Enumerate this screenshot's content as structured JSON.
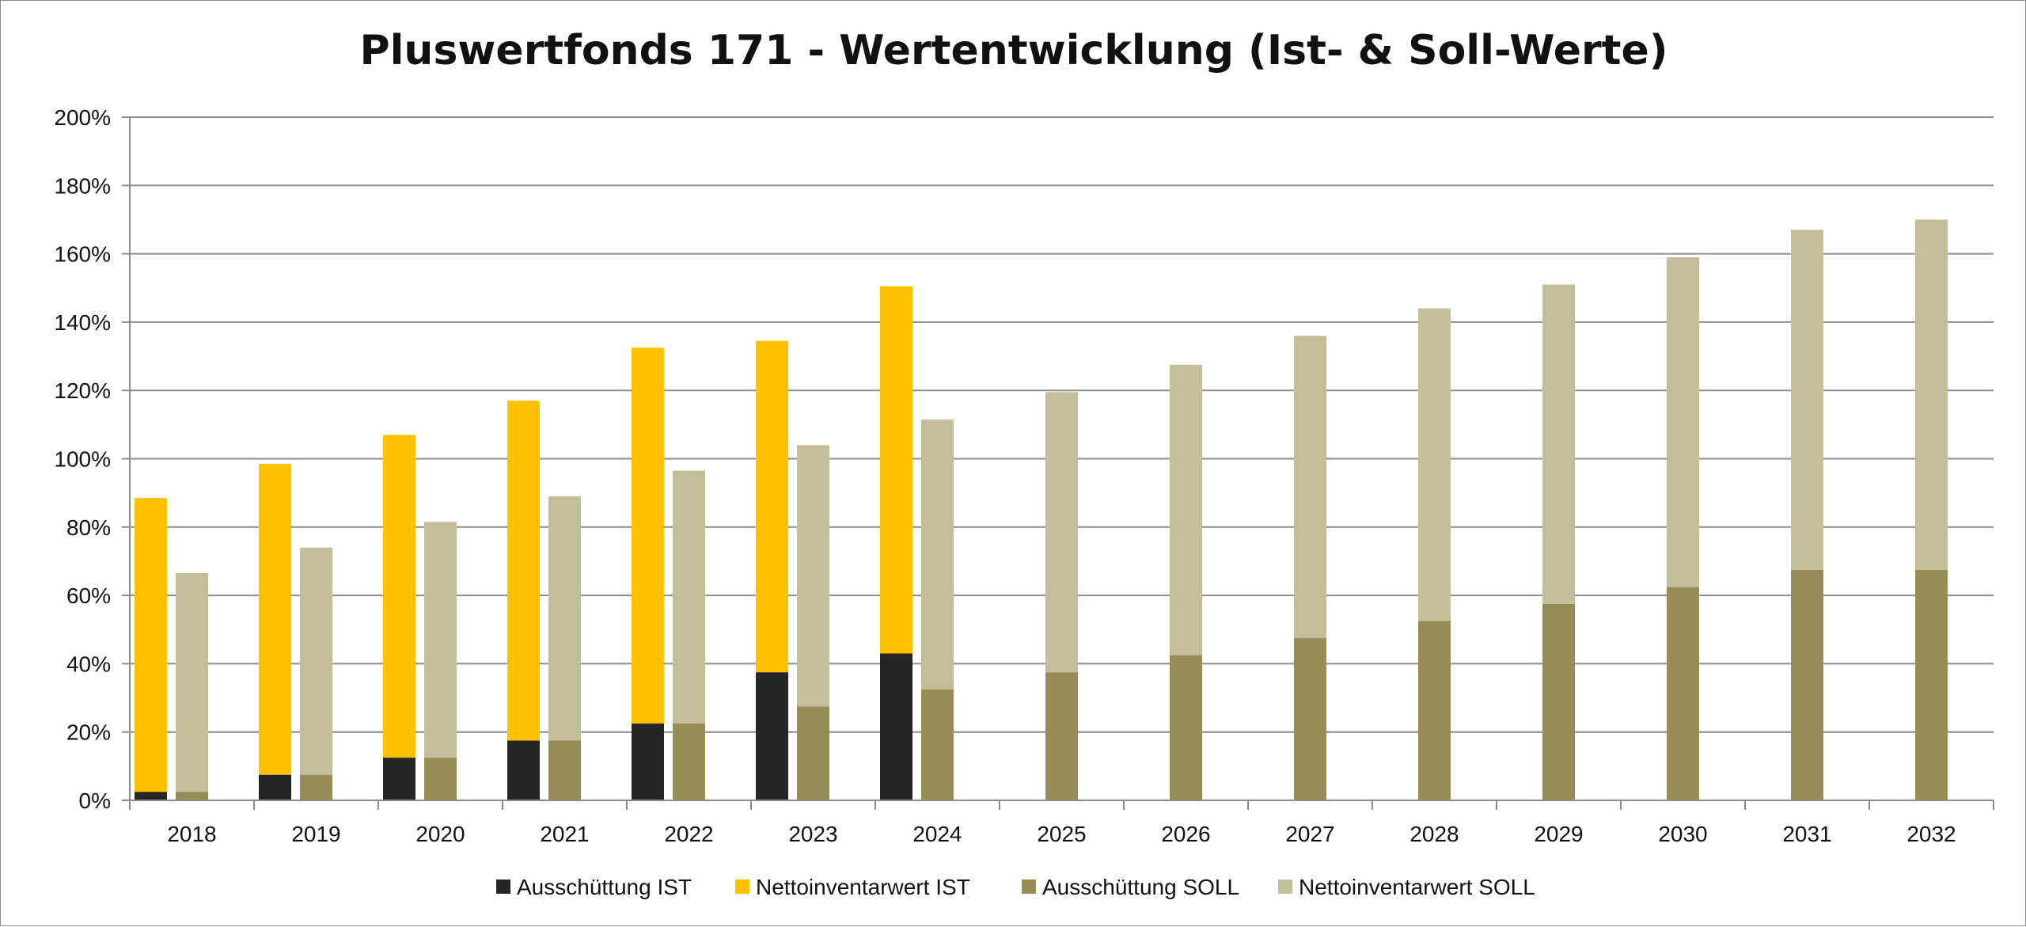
{
  "chart_data": {
    "type": "bar",
    "title": "Pluswertfonds 171 - Wertentwicklung (Ist- & Soll-Werte)",
    "xlabel": "",
    "ylabel": "",
    "ylim": [
      0,
      200
    ],
    "y_ticks": [
      "0%",
      "20%",
      "40%",
      "60%",
      "80%",
      "100%",
      "120%",
      "140%",
      "160%",
      "180%",
      "200%"
    ],
    "y_tick_values": [
      0,
      20,
      40,
      60,
      80,
      100,
      120,
      140,
      160,
      180,
      200
    ],
    "grid": true,
    "legend_position": "bottom",
    "categories": [
      "2018",
      "2019",
      "2020",
      "2021",
      "2022",
      "2023",
      "2024",
      "2025",
      "2026",
      "2027",
      "2028",
      "2029",
      "2030",
      "2031",
      "2032"
    ],
    "stacks": [
      {
        "stack": "IST",
        "series": [
          {
            "name": "Ausschüttung IST",
            "color": "#262626",
            "values": [
              2.5,
              7.5,
              12.5,
              17.5,
              22.5,
              37.5,
              43,
              null,
              null,
              null,
              null,
              null,
              null,
              null,
              null
            ]
          },
          {
            "name": "Nettoinventarwert IST",
            "color": "#ffc000",
            "values": [
              86,
              91,
              94.5,
              99.5,
              110,
              97,
              107.5,
              null,
              null,
              null,
              null,
              null,
              null,
              null,
              null
            ]
          }
        ]
      },
      {
        "stack": "SOLL",
        "series": [
          {
            "name": "Ausschüttung SOLL",
            "color": "#968c56",
            "values": [
              2.5,
              7.5,
              12.5,
              17.5,
              22.5,
              27.5,
              32.5,
              37.5,
              42.5,
              47.5,
              52.5,
              57.5,
              62.5,
              67.5,
              67.5
            ]
          },
          {
            "name": "Nettoinventarwert SOLL",
            "color": "#c4bd99",
            "values": [
              64,
              66.5,
              69,
              71.5,
              74,
              76.5,
              79,
              82,
              85,
              88.5,
              91.5,
              93.5,
              96.5,
              99.5,
              102.5
            ]
          }
        ]
      }
    ],
    "legend": [
      {
        "name": "Ausschüttung IST",
        "color": "#262626"
      },
      {
        "name": "Nettoinventarwert IST",
        "color": "#ffc000"
      },
      {
        "name": "Ausschüttung SOLL",
        "color": "#968c56"
      },
      {
        "name": "Nettoinventarwert SOLL",
        "color": "#c4bd99"
      }
    ]
  }
}
